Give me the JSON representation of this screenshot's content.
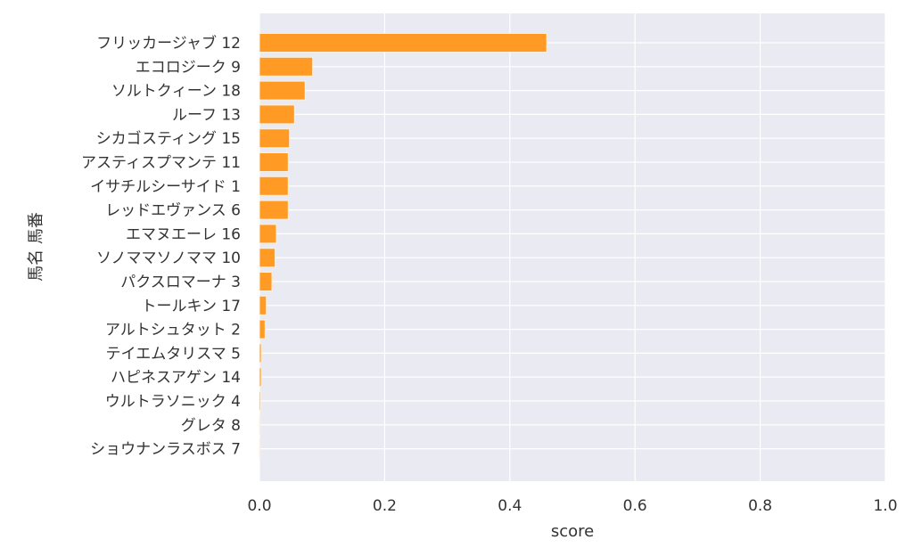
{
  "chart_data": {
    "type": "bar",
    "orientation": "horizontal",
    "title": "",
    "xlabel": "score",
    "ylabel": "馬名 馬番",
    "xlim": [
      0,
      1.0
    ],
    "xticks": [
      "0.0",
      "0.2",
      "0.4",
      "0.6",
      "0.8",
      "1.0"
    ],
    "grid": true,
    "bar_color": "#ff9a24",
    "background_color": "#eaeaf2",
    "categories": [
      "フリッカージャブ 12",
      "エコロジーク 9",
      "ソルトクィーン 18",
      "ルーフ 13",
      "シカゴスティング 15",
      "アスティスプマンテ 11",
      "イサチルシーサイド 1",
      "レッドエヴァンス 6",
      "エマヌエーレ 16",
      "ソノママソノママ 10",
      "パクスロマーナ 3",
      "トールキン 17",
      "アルトシュタット 2",
      "テイエムタリスマ 5",
      "ハピネスアゲン 14",
      "ウルトラソニック 4",
      "グレタ 8",
      "ショウナンラスボス 7"
    ],
    "values": [
      0.459,
      0.085,
      0.073,
      0.056,
      0.048,
      0.046,
      0.046,
      0.046,
      0.027,
      0.025,
      0.02,
      0.011,
      0.009,
      0.003,
      0.003,
      0.002,
      0.001,
      0.001
    ]
  }
}
